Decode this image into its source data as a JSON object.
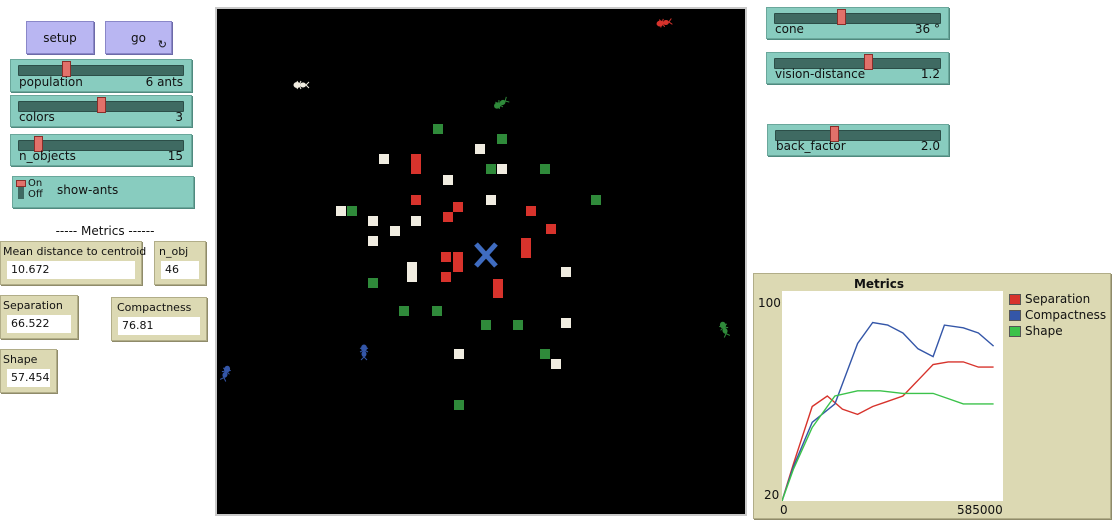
{
  "buttons": {
    "setup": "setup",
    "go": "go",
    "go_icon": "↻"
  },
  "sliders": {
    "population": {
      "label": "population",
      "value": "6 ants",
      "fraction": 0.28
    },
    "colors": {
      "label": "colors",
      "value": "3",
      "fraction": 0.5
    },
    "n_objects": {
      "label": "n_objects",
      "value": "15",
      "fraction": 0.1
    },
    "cone": {
      "label": "cone",
      "value": "36 °",
      "fraction": 0.4
    },
    "vision_distance": {
      "label": "vision-distance",
      "value": "1.2",
      "fraction": 0.57
    },
    "back_factor": {
      "label": "back_factor",
      "value": "2.0",
      "fraction": 0.35
    }
  },
  "switch": {
    "on": "On",
    "off": "Off",
    "label": "show-ants"
  },
  "metrics_header": "----- Metrics ------",
  "monitors": {
    "mean_distance": {
      "label": "Mean distance to centroid",
      "value": "10.672"
    },
    "n_obj": {
      "label": "n_obj",
      "value": "46"
    },
    "separation": {
      "label": "Separation",
      "value": "66.522"
    },
    "compactness": {
      "label": "Compactness",
      "value": "76.81"
    },
    "shape": {
      "label": "Shape",
      "value": "57.454"
    }
  },
  "plot": {
    "title": "Metrics",
    "ymax_label": "100",
    "ymin_label": "20",
    "xmin_label": "0",
    "xmax_label": "585000",
    "colors": {
      "separation": "#d7332c",
      "compactness": "#3456a8",
      "shape": "#3bc24a"
    },
    "legend": [
      "Separation",
      "Compactness",
      "Shape"
    ]
  },
  "chart_data": {
    "type": "line",
    "title": "Metrics",
    "xlim": [
      0,
      585000
    ],
    "ylim": [
      20,
      100
    ],
    "legend_position": "right",
    "series": [
      {
        "name": "Separation",
        "color": "#d7332c",
        "x": [
          0,
          30000,
          80000,
          120000,
          160000,
          200000,
          240000,
          280000,
          320000,
          360000,
          400000,
          440000,
          480000,
          520000,
          560000
        ],
        "y": [
          20,
          34,
          56,
          60,
          55,
          53,
          56,
          58,
          60,
          66,
          72,
          73,
          73,
          71,
          71
        ]
      },
      {
        "name": "Compactness",
        "color": "#3456a8",
        "x": [
          0,
          30000,
          80000,
          140000,
          200000,
          240000,
          280000,
          320000,
          360000,
          400000,
          430000,
          480000,
          520000,
          560000
        ],
        "y": [
          20,
          33,
          50,
          57,
          80,
          88,
          87,
          84,
          78,
          75,
          87,
          86,
          84,
          79
        ]
      },
      {
        "name": "Shape",
        "color": "#3bc24a",
        "x": [
          0,
          30000,
          80000,
          140000,
          200000,
          260000,
          320000,
          360000,
          400000,
          440000,
          480000,
          520000,
          560000
        ],
        "y": [
          20,
          32,
          48,
          60,
          62,
          62,
          61,
          61,
          61,
          59,
          57,
          57,
          57
        ]
      }
    ]
  },
  "world": {
    "cells": [
      [
        "g",
        438,
        129
      ],
      [
        "g",
        502,
        139
      ],
      [
        "w",
        480,
        149
      ],
      [
        "w",
        384,
        159
      ],
      [
        "r",
        416,
        159
      ],
      [
        "r",
        416,
        169
      ],
      [
        "g",
        491,
        169
      ],
      [
        "w",
        502,
        169
      ],
      [
        "g",
        545,
        169
      ],
      [
        "w",
        448,
        180
      ],
      [
        "w",
        491,
        200
      ],
      [
        "r",
        416,
        200
      ],
      [
        "g",
        596,
        200
      ],
      [
        "r",
        458,
        207
      ],
      [
        "w",
        341,
        211
      ],
      [
        "g",
        352,
        211
      ],
      [
        "r",
        531,
        211
      ],
      [
        "r",
        448,
        217
      ],
      [
        "w",
        373,
        221
      ],
      [
        "w",
        416,
        221
      ],
      [
        "w",
        395,
        231
      ],
      [
        "r",
        551,
        229
      ],
      [
        "w",
        373,
        241
      ],
      [
        "r",
        526,
        243
      ],
      [
        "r",
        526,
        253
      ],
      [
        "r",
        446,
        257
      ],
      [
        "r",
        458,
        257
      ],
      [
        "r",
        458,
        267
      ],
      [
        "w",
        412,
        267
      ],
      [
        "w",
        412,
        277
      ],
      [
        "r",
        446,
        277
      ],
      [
        "w",
        566,
        272
      ],
      [
        "g",
        373,
        283
      ],
      [
        "r",
        498,
        284
      ],
      [
        "r",
        498,
        293
      ],
      [
        "g",
        404,
        311
      ],
      [
        "g",
        437,
        311
      ],
      [
        "g",
        486,
        325
      ],
      [
        "g",
        518,
        325
      ],
      [
        "w",
        566,
        323
      ],
      [
        "w",
        459,
        354
      ],
      [
        "g",
        545,
        354
      ],
      [
        "w",
        556,
        364
      ],
      [
        "g",
        459,
        405
      ]
    ],
    "centroid_color": "#3f6cc0",
    "ants": [
      {
        "color": "#d7332c",
        "x": 663,
        "y": 23,
        "r": 80
      },
      {
        "color": "#f0ece0",
        "x": 300,
        "y": 85,
        "r": 90
      },
      {
        "color": "#2f8a3a",
        "x": 500,
        "y": 104,
        "r": 60
      },
      {
        "color": "#2f8a3a",
        "x": 724,
        "y": 328,
        "r": 160
      },
      {
        "color": "#3456a8",
        "x": 364,
        "y": 351,
        "r": 180
      },
      {
        "color": "#3456a8",
        "x": 226,
        "y": 372,
        "r": 200
      }
    ]
  }
}
